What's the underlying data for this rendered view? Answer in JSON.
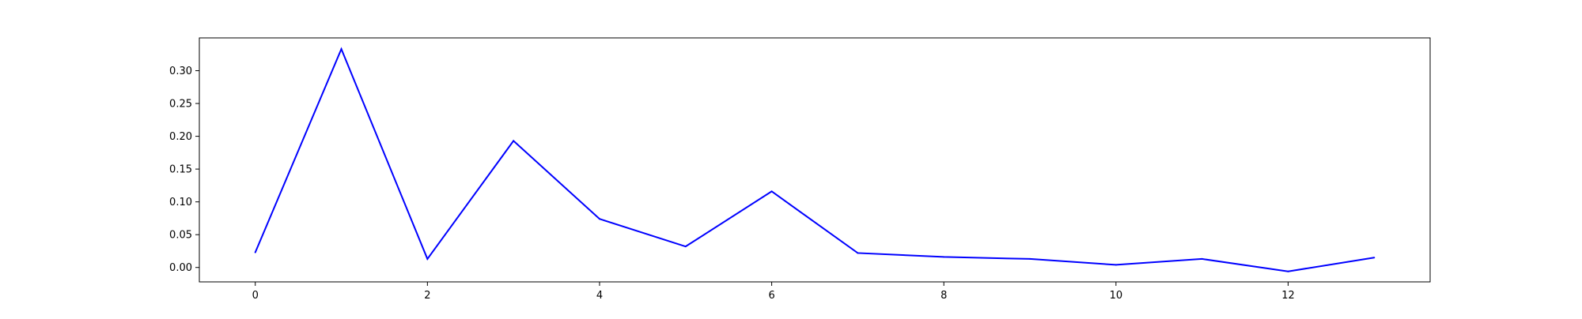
{
  "chart_data": {
    "type": "line",
    "title": "",
    "xlabel": "",
    "ylabel": "",
    "xlim": [
      -0.65,
      13.65
    ],
    "ylim": [
      -0.022,
      0.35
    ],
    "x_ticks": [
      0,
      2,
      4,
      6,
      8,
      10,
      12
    ],
    "y_ticks": [
      0.0,
      0.05,
      0.1,
      0.15,
      0.2,
      0.25,
      0.3
    ],
    "grid": false,
    "legend": "none",
    "series": [
      {
        "color": "#0000ff",
        "x": [
          0,
          1,
          2,
          3,
          4,
          5,
          6,
          7,
          8,
          9,
          10,
          11,
          12,
          13
        ],
        "values": [
          0.023,
          0.333,
          0.013,
          0.193,
          0.074,
          0.032,
          0.116,
          0.022,
          0.016,
          0.013,
          0.004,
          0.013,
          -0.006,
          0.015
        ]
      }
    ]
  }
}
